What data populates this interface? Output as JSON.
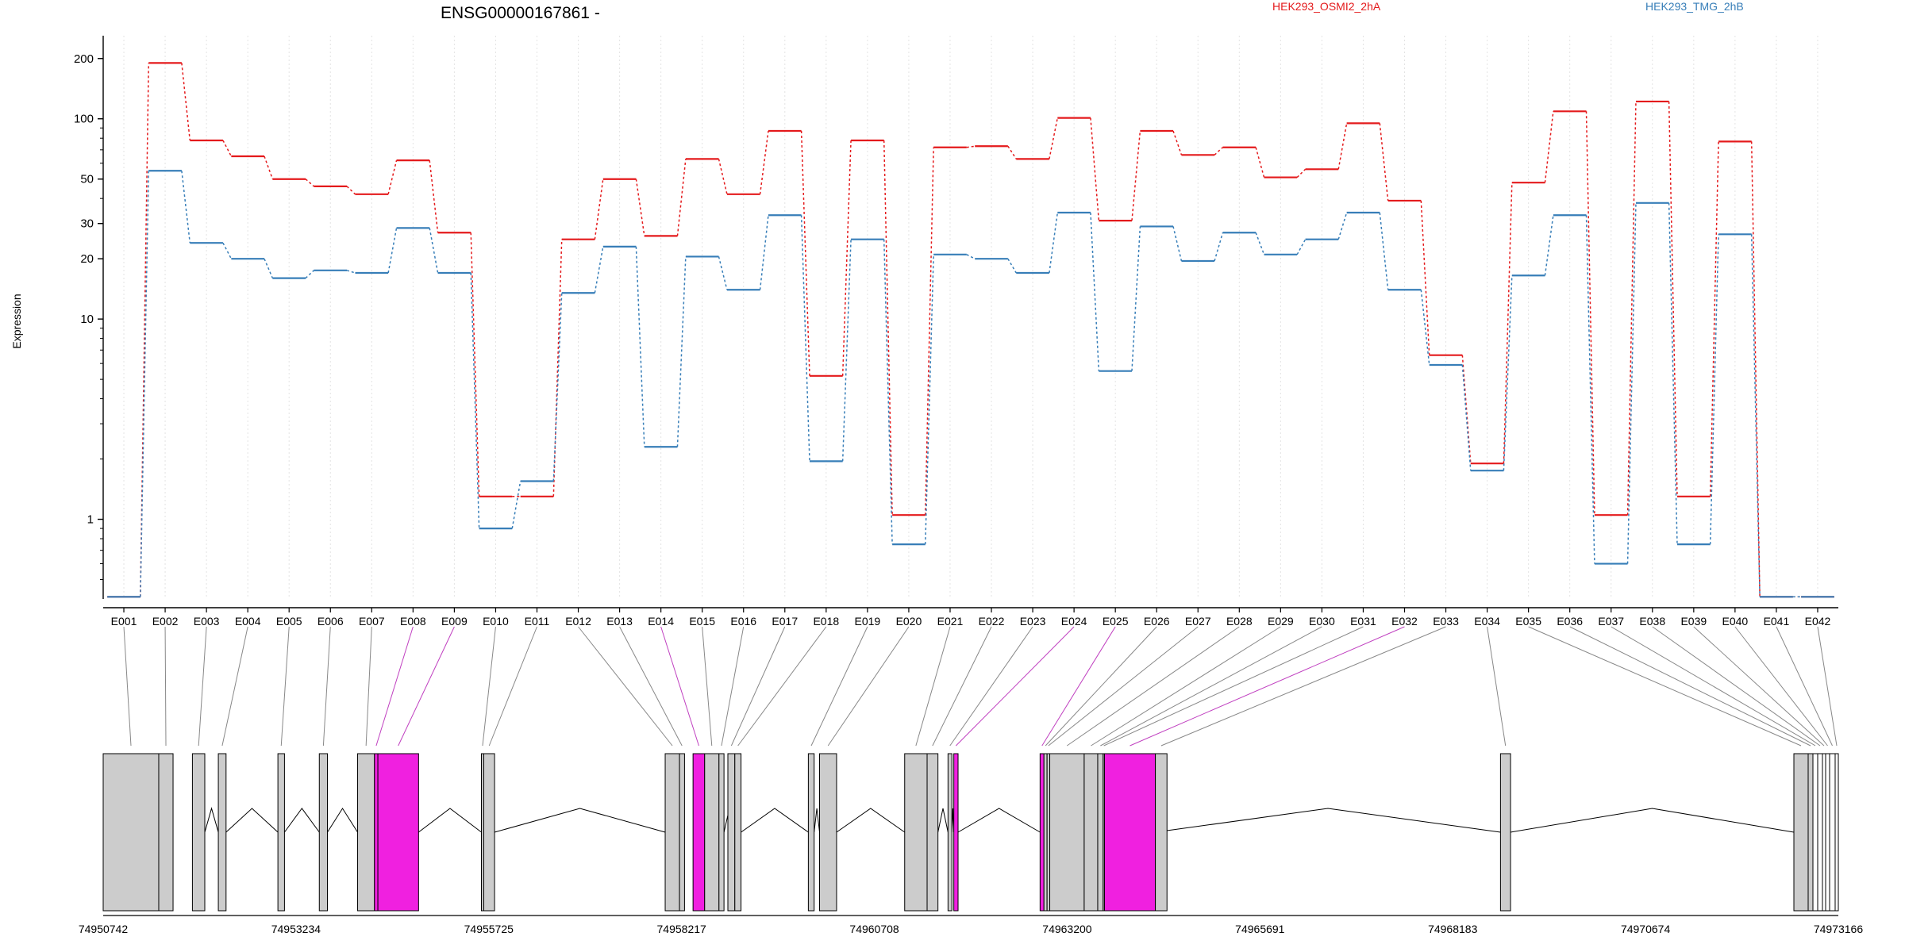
{
  "chart_data": {
    "type": "line",
    "title": "ENSG00000167861 -",
    "ylabel": "Expression",
    "y_scale": "log",
    "y_ticks": [
      1,
      10,
      20,
      30,
      50,
      100,
      200
    ],
    "ylim": [
      0.4,
      260
    ],
    "grid": "vertical dashed lines at each exon",
    "legend_placement": "top",
    "categories": [
      "E001",
      "E002",
      "E003",
      "E004",
      "E005",
      "E006",
      "E007",
      "E008",
      "E009",
      "E010",
      "E011",
      "E012",
      "E013",
      "E014",
      "E015",
      "E016",
      "E017",
      "E018",
      "E019",
      "E020",
      "E021",
      "E022",
      "E023",
      "E024",
      "E025",
      "E026",
      "E027",
      "E028",
      "E029",
      "E030",
      "E031",
      "E032",
      "E033",
      "E034",
      "E035",
      "E036",
      "E037",
      "E038",
      "E039",
      "E040",
      "E041",
      "E042"
    ],
    "series": [
      {
        "name": "HEK293_OSMI2_2hA",
        "color": "#e41a1c",
        "values": [
          0.41,
          190,
          78,
          65,
          50,
          46,
          42,
          62,
          27,
          1.3,
          1.3,
          25,
          50,
          26,
          63,
          42,
          87,
          5.2,
          78,
          1.05,
          72,
          73,
          63,
          101,
          31,
          87,
          66,
          72,
          51,
          56,
          95,
          39,
          6.6,
          1.9,
          48,
          109,
          1.05,
          122,
          1.3,
          77,
          0.41,
          0.41
        ]
      },
      {
        "name": "HEK293_TMG_2hB",
        "color": "#377eb8",
        "values": [
          0.41,
          55,
          24,
          20,
          16,
          17.5,
          17,
          28.5,
          17,
          0.9,
          1.55,
          13.5,
          23,
          2.3,
          20.5,
          14,
          33,
          1.95,
          25,
          0.75,
          21,
          20,
          17,
          34,
          5.5,
          29,
          19.5,
          27,
          21,
          25,
          34,
          14,
          5.9,
          1.75,
          16.5,
          33,
          0.6,
          38,
          0.75,
          26.5,
          0.41,
          0.41
        ]
      }
    ],
    "genomic_ticks": [
      "74950742",
      "74953234",
      "74955725",
      "74958217",
      "74960708",
      "74963200",
      "74965691",
      "74968183",
      "74970674",
      "74973166"
    ],
    "gene_start": 74950742,
    "gene_end": 74973166,
    "exon_coords": [
      [
        74950742,
        74951460
      ],
      [
        74951460,
        74951645
      ],
      [
        74951895,
        74952055
      ],
      [
        74952230,
        74952330
      ],
      [
        74953000,
        74953085
      ],
      [
        74953535,
        74953640
      ],
      [
        74954030,
        74954248
      ],
      [
        74954248,
        74954292
      ],
      [
        74954292,
        74954818
      ],
      [
        74955630,
        74955660
      ],
      [
        74955660,
        74955800
      ],
      [
        74958005,
        74958190
      ],
      [
        74958190,
        74958255
      ],
      [
        74958365,
        74958515
      ],
      [
        74958515,
        74958700
      ],
      [
        74958700,
        74958765
      ],
      [
        74958815,
        74958905
      ],
      [
        74958905,
        74958985
      ],
      [
        74959855,
        74959930
      ],
      [
        74960000,
        74960220
      ],
      [
        74961100,
        74961390
      ],
      [
        74961390,
        74961530
      ],
      [
        74961660,
        74961710
      ],
      [
        74961735,
        74961790
      ],
      [
        74962850,
        74962900
      ],
      [
        74962900,
        74962940
      ],
      [
        74962940,
        74962975
      ],
      [
        74962975,
        74963420
      ],
      [
        74963420,
        74963595
      ],
      [
        74963595,
        74963665
      ],
      [
        74963665,
        74963682
      ],
      [
        74963682,
        74964340
      ],
      [
        74964340,
        74964490
      ],
      [
        74968800,
        74968930
      ],
      [
        74973166,
        74973166
      ],
      [
        74973166,
        74973166
      ],
      [
        74973166,
        74973166
      ],
      [
        74973166,
        74973166
      ],
      [
        74973166,
        74973166
      ],
      [
        74973166,
        74973166
      ],
      [
        74973166,
        74973166
      ],
      [
        74973166,
        74973166
      ]
    ],
    "highlighted_exons": [
      "E008",
      "E009",
      "E014",
      "E024",
      "E025",
      "E032"
    ]
  }
}
